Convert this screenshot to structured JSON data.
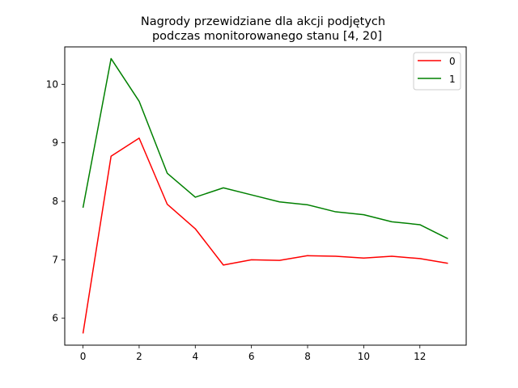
{
  "chart_data": {
    "type": "line",
    "title_lines": [
      "Nagrody przewidziane dla akcji podjętych",
      "podczas monitorowanego stanu [4, 20]"
    ],
    "xlabel": "",
    "ylabel": "",
    "x": [
      0,
      1,
      2,
      3,
      4,
      5,
      6,
      7,
      8,
      9,
      10,
      11,
      12,
      13
    ],
    "xlim": [
      -0.65,
      13.65
    ],
    "ylim": [
      5.54,
      10.64
    ],
    "xticks": [
      "0",
      "2",
      "4",
      "6",
      "8",
      "10",
      "12"
    ],
    "yticks": [
      "6",
      "7",
      "8",
      "9",
      "10"
    ],
    "grid": false,
    "legend_position": "top-right",
    "series": [
      {
        "name": "0",
        "color": "#ff0000",
        "values": [
          5.74,
          8.77,
          9.08,
          7.95,
          7.53,
          6.91,
          7.0,
          6.99,
          7.07,
          7.06,
          7.03,
          7.06,
          7.02,
          6.94
        ]
      },
      {
        "name": "1",
        "color": "#008000",
        "values": [
          7.89,
          10.44,
          9.71,
          8.48,
          8.07,
          8.23,
          8.11,
          7.99,
          7.94,
          7.82,
          7.77,
          7.65,
          7.6,
          7.36
        ]
      }
    ]
  }
}
